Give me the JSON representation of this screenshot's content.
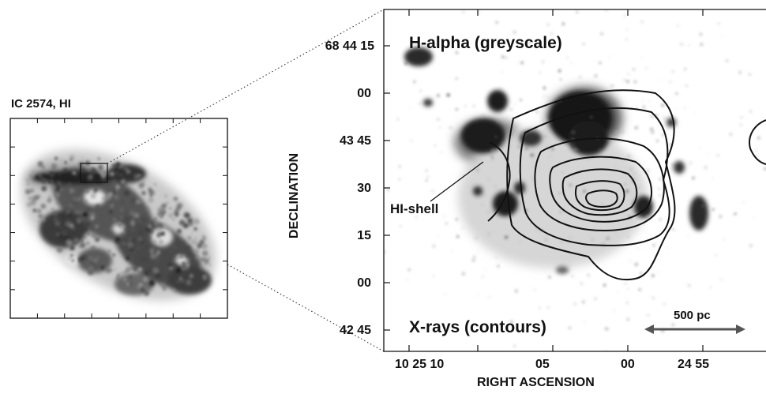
{
  "left_panel": {
    "title": "IC 2574, HI"
  },
  "right_panel": {
    "label_top": "H-alpha (greyscale)",
    "label_bottom": "X-rays (contours)",
    "shell_label": "HI-shell",
    "scale_bar_label": "500 pc",
    "y_axis_title": "DECLINATION",
    "x_axis_title": "RIGHT ASCENSION",
    "y_ticks": [
      "68 44 15",
      "00",
      "43 45",
      "30",
      "15",
      "00",
      "42 45"
    ],
    "x_ticks": [
      "10 25 10",
      "05",
      "00",
      "24 55"
    ]
  },
  "colors": {
    "ink": "#111111",
    "greyscale_dark": "#141414",
    "greyscale_light": "#b8b8b8",
    "background": "#ffffff"
  }
}
